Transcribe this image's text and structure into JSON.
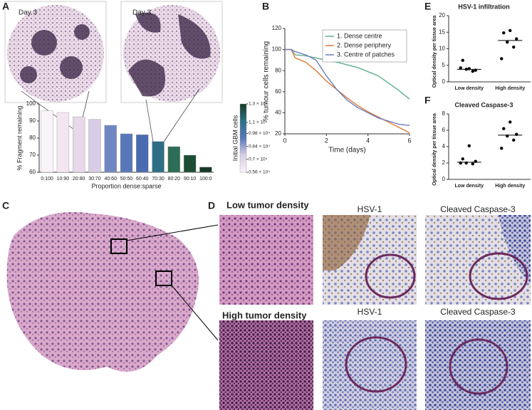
{
  "panel_labels": [
    "A",
    "B",
    "C",
    "D",
    "E",
    "F"
  ],
  "panel_a": {
    "captions": [
      "Day 3",
      "Day 3"
    ]
  },
  "panel_d": {
    "rows": [
      {
        "title": "Low tumor density",
        "stains": [
          "HSV-1",
          "Cleaved Caspase-3"
        ]
      },
      {
        "title": "High tumor density",
        "stains": [
          "HSV-1",
          "Cleaved Caspase-3"
        ]
      }
    ]
  },
  "chart_data": [
    {
      "type": "bar",
      "categories": [
        "0:100",
        "10:90",
        "20:80",
        "30:70",
        "40:60",
        "50:50",
        "60:40",
        "70:30",
        "80:20",
        "90:10",
        "100:0"
      ],
      "values": [
        96,
        95,
        92.5,
        91,
        87.5,
        82.5,
        82,
        78,
        75,
        70,
        63
      ],
      "colors": [
        "#faf3f9",
        "#f3e6f1",
        "#e8d8ea",
        "#d9cce6",
        "#6f86c2",
        "#5877b8",
        "#4a6bb0",
        "#2f6f86",
        "#2d6d57",
        "#1d4d33",
        "#163a27"
      ],
      "ylim": [
        60,
        100
      ],
      "yticks": [
        60,
        70,
        80,
        90,
        100
      ],
      "y_label": "% Fragment remaining",
      "x_label": "Proportion dense:sparse",
      "colorbar": {
        "label": "Initial GBM cells",
        "lim": [
          5600,
          13000
        ],
        "ticks": [
          {
            "value": 13000,
            "label": "1.3 × 10⁴"
          },
          {
            "value": 11000,
            "label": "1.1 × 10⁴"
          },
          {
            "value": 9800,
            "label": "0.98 × 10⁴"
          },
          {
            "value": 8400,
            "label": "0.84 × 10⁴"
          },
          {
            "value": 7000,
            "label": "0.7 × 10⁴"
          },
          {
            "value": 5600,
            "label": "0.56 × 10⁴"
          }
        ],
        "colors": [
          "#faf3f9",
          "#d9cce6",
          "#5877b8",
          "#2f6f86",
          "#163a27"
        ]
      }
    },
    {
      "type": "line",
      "x": [
        0,
        0.3,
        0.5,
        1,
        1.5,
        2,
        2.5,
        3,
        3.5,
        4,
        4.5,
        5,
        5.5,
        6
      ],
      "series": [
        {
          "name": "1. Dense centre",
          "color": "#5daf8c",
          "values": [
            100,
            100,
            95,
            94,
            92,
            90,
            88,
            85.5,
            83,
            79,
            75,
            68,
            61,
            53
          ]
        },
        {
          "name": "2. Dense periphery",
          "color": "#e07b39",
          "values": [
            100,
            100,
            92,
            88,
            80,
            70,
            62,
            54,
            47,
            41,
            36,
            31,
            26,
            21
          ]
        },
        {
          "name": "3. Centre of patches",
          "color": "#6b7bbf",
          "values": [
            100,
            100,
            98,
            95,
            90,
            75,
            62,
            52,
            45,
            40,
            35,
            32,
            29,
            28
          ]
        }
      ],
      "xlim": [
        0,
        6
      ],
      "ylim": [
        20,
        120
      ],
      "xticks": [
        0,
        2,
        4,
        6
      ],
      "yticks": [
        20,
        40,
        60,
        80,
        100,
        120
      ],
      "x_label": "Time (days)",
      "y_label": "% tumour cells remaining",
      "legend": "upper right"
    },
    {
      "type": "dot",
      "title": "HSV-1 infiltration",
      "y_label": "Optical density per tissue area",
      "categories": [
        "Low density",
        "High density"
      ],
      "points": [
        [
          4,
          6.5,
          3.5,
          3.8,
          3.2,
          4.2
        ],
        [
          15.5,
          14.8,
          13,
          12,
          10.5,
          7
        ]
      ],
      "medians": [
        3.8,
        12.5
      ],
      "ylim": [
        0,
        20
      ],
      "yticks": [
        0,
        5,
        10,
        15,
        20
      ],
      "color": "#000000"
    },
    {
      "type": "dot",
      "title": "Cleaved Caspase-3",
      "y_label": "Optical density per tissue area",
      "categories": [
        "Low density",
        "High density"
      ],
      "points": [
        [
          4.1,
          2.5,
          2.2,
          2,
          1.9,
          2
        ],
        [
          7,
          6.2,
          5.5,
          5.3,
          4.8,
          3.8
        ]
      ],
      "medians": [
        2.1,
        5.4
      ],
      "ylim": [
        0,
        8
      ],
      "yticks": [
        0,
        2,
        4,
        6,
        8
      ],
      "color": "#000000"
    }
  ]
}
